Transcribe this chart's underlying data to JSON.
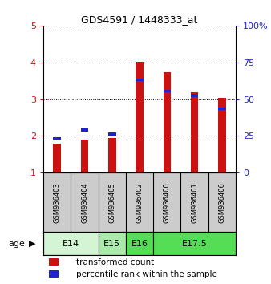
{
  "title": "GDS4591 / 1448333_at",
  "samples": [
    "GSM936403",
    "GSM936404",
    "GSM936405",
    "GSM936402",
    "GSM936400",
    "GSM936401",
    "GSM936406"
  ],
  "red_values": [
    1.78,
    1.9,
    1.95,
    4.02,
    3.73,
    3.18,
    3.03
  ],
  "blue_values": [
    1.93,
    2.16,
    2.05,
    3.52,
    3.22,
    3.1,
    2.73
  ],
  "ylim_left": [
    1,
    5
  ],
  "ylim_right": [
    0,
    100
  ],
  "yticks_left": [
    1,
    2,
    3,
    4,
    5
  ],
  "yticks_right": [
    0,
    25,
    50,
    75,
    100
  ],
  "age_groups": [
    {
      "label": "E14",
      "start": 0,
      "end": 2,
      "color": "#d4f5d4"
    },
    {
      "label": "E15",
      "start": 2,
      "end": 3,
      "color": "#aaeaaa"
    },
    {
      "label": "E16",
      "start": 3,
      "end": 4,
      "color": "#55dd55"
    },
    {
      "label": "E17.5",
      "start": 4,
      "end": 7,
      "color": "#55dd55"
    }
  ],
  "bar_color_red": "#cc1111",
  "bar_color_blue": "#2222cc",
  "bar_width": 0.35,
  "plot_bg": "#ffffff",
  "sample_bg": "#cccccc",
  "legend_red": "transformed count",
  "legend_blue": "percentile rank within the sample"
}
